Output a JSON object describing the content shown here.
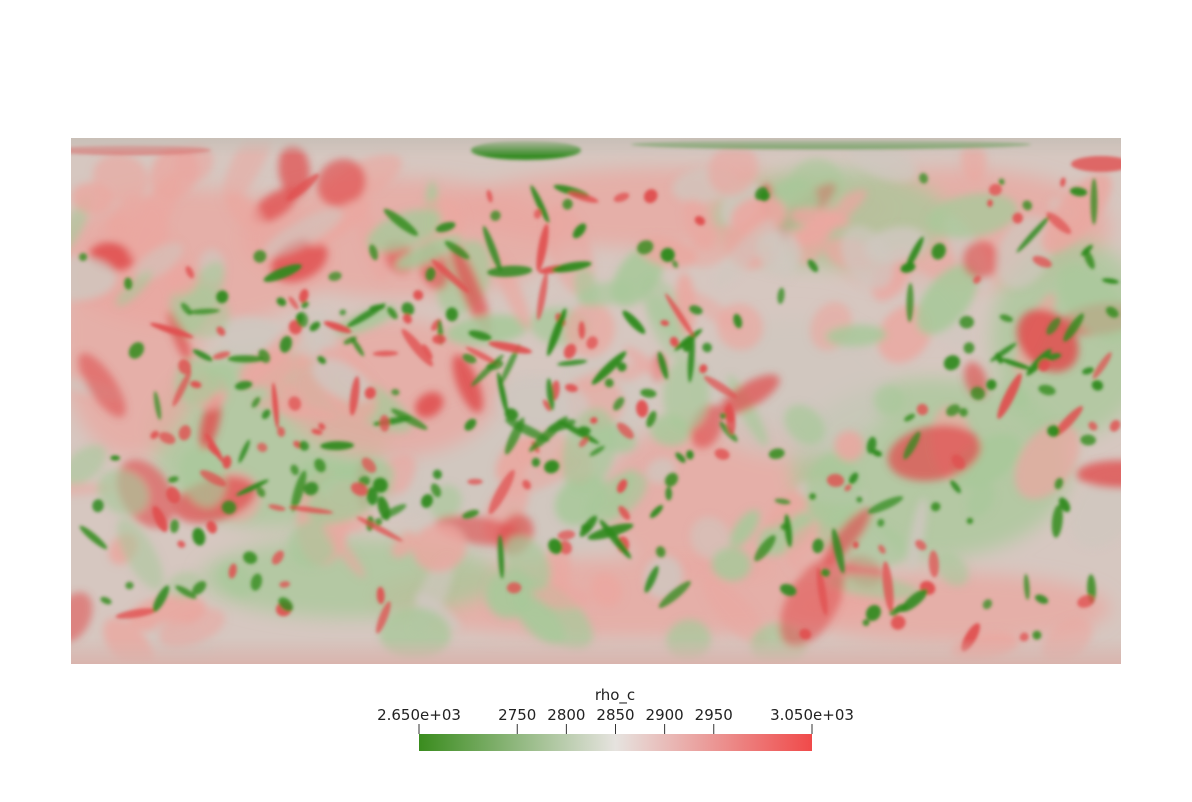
{
  "colorbar": {
    "title": "rho_c",
    "min_label": "2.650e+03",
    "max_label": "3.050e+03",
    "min": 2650,
    "max": 3050,
    "ticks": [
      {
        "value": 2650,
        "label": "2.650e+03"
      },
      {
        "value": 2750,
        "label": "2750"
      },
      {
        "value": 2800,
        "label": "2800"
      },
      {
        "value": 2850,
        "label": "2850"
      },
      {
        "value": 2900,
        "label": "2900"
      },
      {
        "value": 2950,
        "label": "2950"
      },
      {
        "value": 3050,
        "label": "3.050e+03"
      }
    ],
    "colors": {
      "low": "#3a8c1e",
      "mid": "#e6e3df",
      "high": "#f04a4a"
    }
  },
  "map": {
    "projection": "equirectangular",
    "field": "rho_c",
    "colors": {
      "green_strong": "#2f8a1c",
      "green_soft": "#a8c89a",
      "neutral": "#cfc7bf",
      "red_soft": "#eaa7a0",
      "red_strong": "#e04f4f"
    }
  }
}
